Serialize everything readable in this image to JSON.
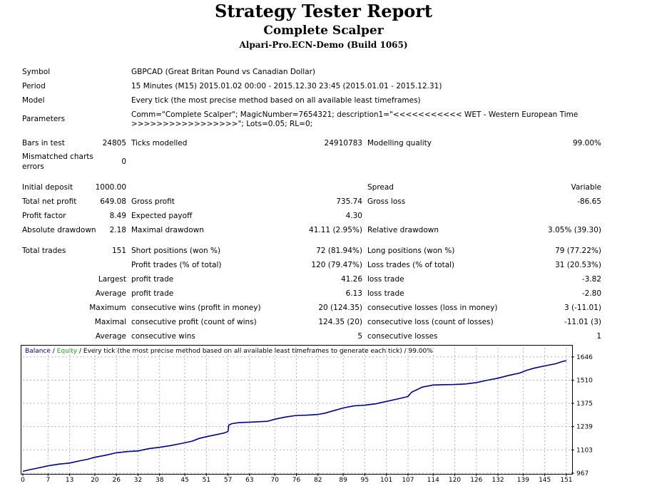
{
  "header": {
    "title": "Strategy Tester Report",
    "subtitle": "Complete Scalper",
    "server": "Alpari-Pro.ECN-Demo (Build 1065)"
  },
  "info": {
    "symbol_label": "Symbol",
    "symbol_value": "GBPCAD (Great Britan Pound vs Canadian Dollar)",
    "period_label": "Period",
    "period_value": "15 Minutes (M15) 2015.01.02 00:00 - 2015.12.30 23:45 (2015.01.01 - 2015.12.31)",
    "model_label": "Model",
    "model_value": "Every tick (the most precise method based on all available least timeframes)",
    "parameters_label": "Parameters",
    "parameters_line1": "Comm=\"Complete Scalper\"; MagicNumber=7654321; description1=\"<<<<<<<<<<< WET - Western European Time",
    "parameters_line2": ">>>>>>>>>>>>>>>>>\"; Lots=0.05; RL=0;"
  },
  "stats": {
    "bars_label": "Bars in test",
    "bars_value": "24805",
    "ticks_label": "Ticks modelled",
    "ticks_value": "24910783",
    "quality_label": "Modelling quality",
    "quality_value": "99.00%",
    "mismatch_label_1": "Mismatched charts",
    "mismatch_label_2": "errors",
    "mismatch_value": "0",
    "deposit_label": "Initial deposit",
    "deposit_value": "1000.00",
    "spread_label": "Spread",
    "spread_value": "Variable",
    "net_profit_label": "Total net profit",
    "net_profit_value": "649.08",
    "gross_profit_label": "Gross profit",
    "gross_profit_value": "735.74",
    "gross_loss_label": "Gross loss",
    "gross_loss_value": "-86.65",
    "profit_factor_label": "Profit factor",
    "profit_factor_value": "8.49",
    "payoff_label": "Expected payoff",
    "payoff_value": "4.30",
    "abs_dd_label": "Absolute drawdown",
    "abs_dd_value": "2.18",
    "max_dd_label": "Maximal drawdown",
    "max_dd_value": "41.11 (2.95%)",
    "rel_dd_label": "Relative drawdown",
    "rel_dd_value": "3.05% (39.30)",
    "total_trades_label": "Total trades",
    "total_trades_value": "151",
    "short_label": "Short positions (won %)",
    "short_value": "72 (81.94%)",
    "long_label": "Long positions (won %)",
    "long_value": "79 (77.22%)",
    "profit_trades_label": "Profit trades (% of total)",
    "profit_trades_value": "120 (79.47%)",
    "loss_trades_label": "Loss trades (% of total)",
    "loss_trades_value": "31 (20.53%)",
    "largest_label": "Largest",
    "largest_profit_label": "profit trade",
    "largest_profit_value": "41.26",
    "largest_loss_label": "loss trade",
    "largest_loss_value": "-3.82",
    "average_label": "Average",
    "average_profit_label": "profit trade",
    "average_profit_value": "6.13",
    "average_loss_label": "loss trade",
    "average_loss_value": "-2.80",
    "maximum_label": "Maximum",
    "max_cons_wins_label": "consecutive wins (profit in money)",
    "max_cons_wins_value": "20 (124.35)",
    "max_cons_losses_label": "consecutive losses (loss in money)",
    "max_cons_losses_value": "3 (-11.01)",
    "maximal_label": "Maximal",
    "maximal_cons_profit_label": "consecutive profit (count of wins)",
    "maximal_cons_profit_value": "124.35 (20)",
    "maximal_cons_loss_label": "consecutive loss (count of losses)",
    "maximal_cons_loss_value": "-11.01 (3)",
    "average2_label": "Average",
    "avg_cons_wins_label": "consecutive wins",
    "avg_cons_wins_value": "5",
    "avg_cons_losses_label": "consecutive losses",
    "avg_cons_losses_value": "1"
  },
  "chart_legend": {
    "balance": "Balance",
    "sep": " / ",
    "equity": "Equity",
    "rest": " / Every tick (the most precise method based on all available least timeframes to generate each tick) / 99.00%"
  },
  "colors": {
    "balance": "#00008b",
    "equity": "#2aa02a",
    "grid": "#b4b4b4"
  },
  "chart_data": {
    "type": "line",
    "xticks": [
      0,
      7,
      13,
      20,
      26,
      32,
      38,
      45,
      51,
      57,
      63,
      70,
      76,
      82,
      89,
      95,
      101,
      107,
      114,
      120,
      126,
      132,
      139,
      145,
      151
    ],
    "yticks": [
      967,
      1103,
      1239,
      1375,
      1510,
      1646
    ],
    "xlim": [
      0,
      152
    ],
    "ylim": [
      967,
      1658
    ],
    "grid": true,
    "series": [
      {
        "name": "Balance",
        "x": [
          0,
          2,
          4,
          7,
          10,
          13,
          16,
          18,
          20,
          23,
          26,
          29,
          32,
          35,
          38,
          41,
          44,
          47,
          49,
          51,
          54,
          56,
          57,
          57.2,
          58,
          60,
          63,
          66,
          68,
          70,
          73,
          76,
          79,
          82,
          84,
          86,
          89,
          92,
          95,
          98,
          101,
          104,
          106,
          107,
          108,
          111,
          114,
          117,
          120,
          123,
          126,
          129,
          132,
          135,
          138,
          140,
          142,
          145,
          148,
          150,
          151
        ],
        "y": [
          978,
          988,
          996,
          1010,
          1020,
          1026,
          1040,
          1048,
          1060,
          1072,
          1086,
          1093,
          1097,
          1110,
          1118,
          1128,
          1140,
          1154,
          1170,
          1180,
          1193,
          1202,
          1210,
          1248,
          1256,
          1262,
          1265,
          1268,
          1270,
          1282,
          1295,
          1304,
          1306,
          1310,
          1318,
          1330,
          1348,
          1360,
          1364,
          1372,
          1386,
          1400,
          1410,
          1415,
          1440,
          1470,
          1482,
          1484,
          1485,
          1488,
          1496,
          1510,
          1522,
          1538,
          1552,
          1568,
          1580,
          1594,
          1606,
          1620,
          1624
        ]
      }
    ]
  }
}
